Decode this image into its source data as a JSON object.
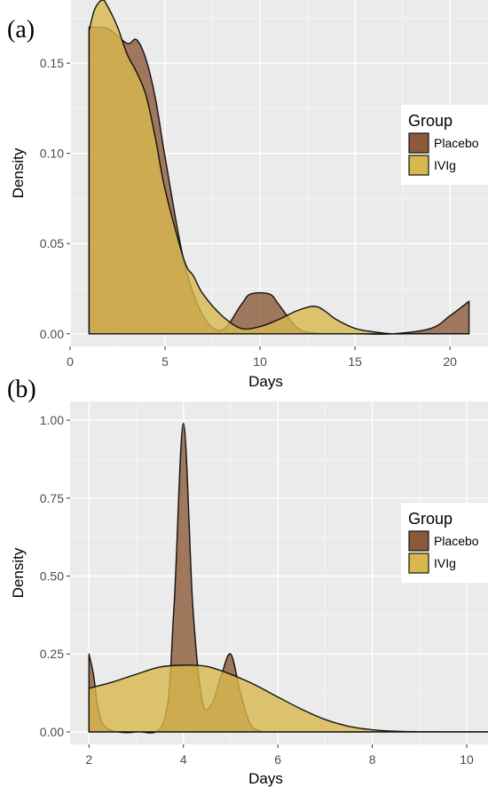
{
  "chart_data": [
    {
      "panel_label": "(a)",
      "type": "area",
      "xlabel": "Days",
      "ylabel": "Density",
      "xlim": [
        0,
        22
      ],
      "ylim": [
        -0.007,
        0.185
      ],
      "xticks": [
        0,
        5,
        10,
        15,
        20
      ],
      "yticks": [
        0.0,
        0.05,
        0.1,
        0.15
      ],
      "ytick_labels": [
        "0.00",
        "0.05",
        "0.10",
        "0.15"
      ],
      "legend": {
        "title": "Group",
        "placement": "right"
      },
      "series": [
        {
          "name": "Placebo",
          "color": "#8c5a3a",
          "x": [
            1,
            2,
            3,
            3.5,
            4,
            4.5,
            5,
            6,
            7,
            8,
            9,
            9.5,
            10.5,
            11,
            12,
            13,
            14,
            15,
            17,
            19,
            20,
            21
          ],
          "y": [
            0.17,
            0.169,
            0.161,
            0.163,
            0.152,
            0.13,
            0.098,
            0.04,
            0.01,
            0.002,
            0.016,
            0.022,
            0.022,
            0.016,
            0.003,
            0.0003,
            0.0001,
            0,
            0,
            0.003,
            0.01,
            0.018
          ]
        },
        {
          "name": "IVIg",
          "color": "#d8b84e",
          "x": [
            1,
            1.3,
            1.7,
            2,
            2.5,
            3,
            3.5,
            4,
            4.5,
            5,
            6,
            6.5,
            7,
            8,
            9,
            10,
            11,
            12,
            13,
            14,
            15,
            16,
            17,
            18,
            19,
            20,
            21
          ],
          "y": [
            0.168,
            0.18,
            0.185,
            0.181,
            0.17,
            0.155,
            0.145,
            0.132,
            0.108,
            0.08,
            0.041,
            0.032,
            0.022,
            0.01,
            0.003,
            0.004,
            0.008,
            0.013,
            0.015,
            0.008,
            0.003,
            0.001,
            0,
            0,
            0,
            0,
            0
          ]
        }
      ]
    },
    {
      "panel_label": "(b)",
      "type": "area",
      "xlabel": "Days",
      "ylabel": "Density",
      "xlim": [
        1.6,
        10.45
      ],
      "ylim": [
        -0.04,
        1.06
      ],
      "xticks": [
        2,
        4,
        6,
        8,
        10
      ],
      "yticks": [
        0.0,
        0.25,
        0.5,
        0.75,
        1.0
      ],
      "ytick_labels": [
        "0.00",
        "0.25",
        "0.50",
        "0.75",
        "1.00"
      ],
      "legend": {
        "title": "Group",
        "placement": "right"
      },
      "series": [
        {
          "name": "Placebo",
          "color": "#8c5a3a",
          "x": [
            2,
            2.1,
            2.2,
            2.4,
            3,
            3.6,
            3.8,
            4,
            4.2,
            4.4,
            4.6,
            4.8,
            5,
            5.2,
            5.4,
            5.6,
            6,
            8,
            10.45
          ],
          "y": [
            0.25,
            0.18,
            0.07,
            0.01,
            0,
            0.04,
            0.4,
            0.99,
            0.4,
            0.1,
            0.09,
            0.18,
            0.25,
            0.13,
            0.03,
            0.005,
            0,
            0,
            0
          ]
        },
        {
          "name": "IVIg",
          "color": "#d8b84e",
          "x": [
            2,
            2.5,
            3,
            3.5,
            4,
            4.5,
            5,
            5.5,
            6,
            6.5,
            7,
            7.5,
            8,
            8.5,
            9,
            10,
            10.45
          ],
          "y": [
            0.14,
            0.16,
            0.185,
            0.208,
            0.214,
            0.21,
            0.185,
            0.152,
            0.112,
            0.073,
            0.04,
            0.018,
            0.007,
            0.002,
            0.0005,
            0,
            0
          ]
        }
      ]
    }
  ]
}
